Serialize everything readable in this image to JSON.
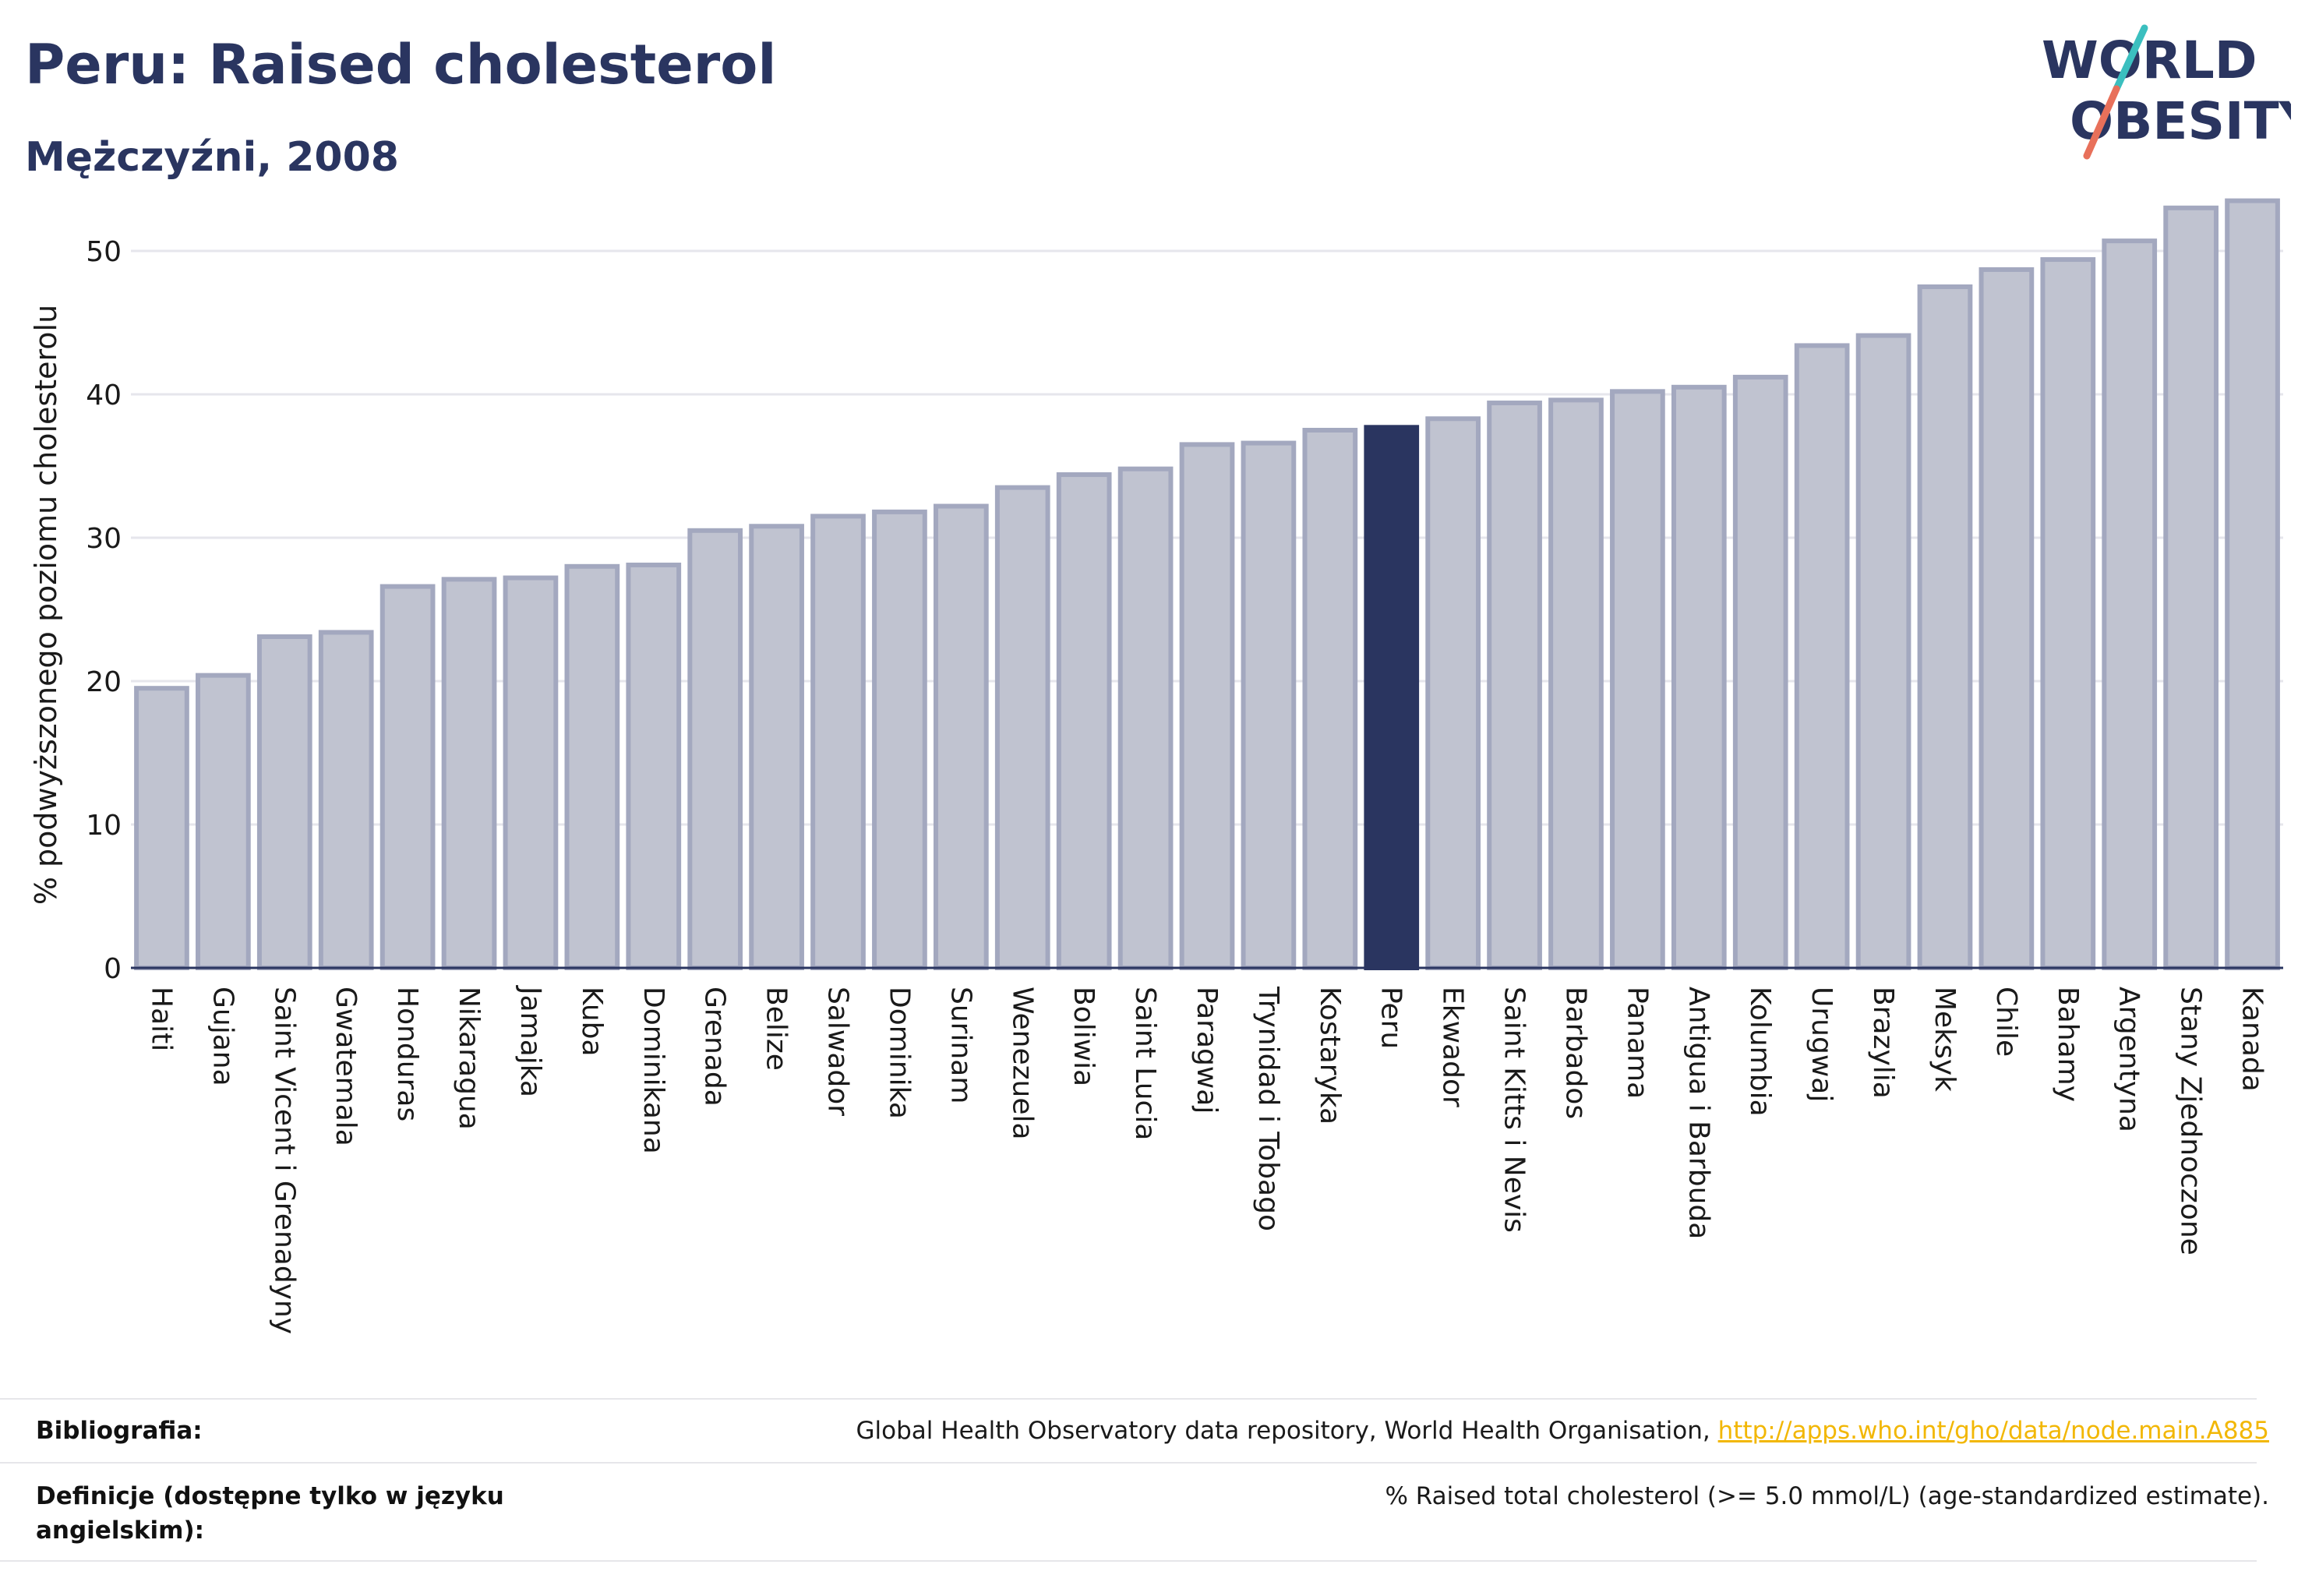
{
  "header": {
    "title": "Peru: Raised cholesterol",
    "subtitle": "Mężczyźni, 2008"
  },
  "logo": {
    "line1": "WORLD",
    "line2": "OBESITY",
    "text_color": "#2a3560",
    "slash_color_top": "#3bbfbf",
    "slash_color_bottom": "#e8705a"
  },
  "colors": {
    "bar_default": "#c0c3d0",
    "bar_default_edge": "#a3a8bf",
    "bar_highlight": "#2a3560",
    "grid": "#e6e6ec",
    "axis": "#2a3560"
  },
  "chart_data": {
    "type": "bar",
    "ylabel": "% podwyższonego poziomu cholesterolu",
    "ylim": [
      0,
      55
    ],
    "yticks": [
      0,
      10,
      20,
      30,
      40,
      50
    ],
    "grid": true,
    "highlight": "Peru",
    "categories": [
      "Haiti",
      "Gujana",
      "Saint Vicent i Grenadyny",
      "Gwatemala",
      "Honduras",
      "Nikaragua",
      "Jamajka",
      "Kuba",
      "Dominikana",
      "Grenada",
      "Belize",
      "Salwador",
      "Dominika",
      "Surinam",
      "Wenezuela",
      "Boliwia",
      "Saint Lucia",
      "Paragwaj",
      "Trynidad i Tobago",
      "Kostaryka",
      "Peru",
      "Ekwador",
      "Saint Kitts i Nevis",
      "Barbados",
      "Panama",
      "Antigua i Barbuda",
      "Kolumbia",
      "Urugwaj",
      "Brazylia",
      "Meksyk",
      "Chile",
      "Bahamy",
      "Argentyna",
      "Stany Zjednoczone",
      "Kanada"
    ],
    "values": [
      19.5,
      20.4,
      23.1,
      23.4,
      26.6,
      27.1,
      27.2,
      28.0,
      28.1,
      30.5,
      30.8,
      31.5,
      31.8,
      32.2,
      33.5,
      34.4,
      34.8,
      36.5,
      36.6,
      37.5,
      37.7,
      38.3,
      39.4,
      39.6,
      40.2,
      40.5,
      41.2,
      43.4,
      44.1,
      47.5,
      48.7,
      49.4,
      50.7,
      53.0,
      53.5
    ]
  },
  "footer": {
    "bibliography_label": "Bibliografia:",
    "bibliography_text": "Global Health Observatory data repository, World Health Organisation,",
    "bibliography_link": "http://apps.who.int/gho/data/node.main.A885",
    "definitions_label": "Definicje (dostępne tylko w języku angielskim):",
    "definitions_text": "% Raised total cholesterol (>= 5.0 mmol/L) (age-standardized estimate)."
  }
}
